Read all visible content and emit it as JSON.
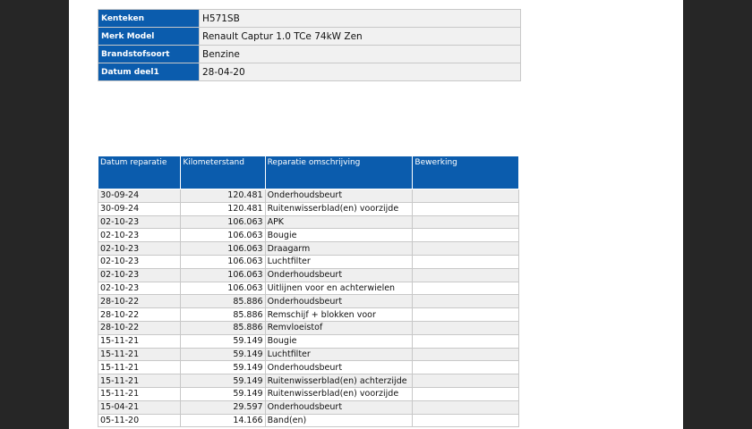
{
  "vehicle": {
    "rows": [
      {
        "label": "Kenteken",
        "value": "H571SB"
      },
      {
        "label": "Merk Model",
        "value": "Renault Captur 1.0 TCe 74kW Zen"
      },
      {
        "label": "Brandstofsoort",
        "value": "Benzine"
      },
      {
        "label": "Datum deel1",
        "value": "28-04-20"
      }
    ]
  },
  "repairs": {
    "headers": [
      "Datum reparatie",
      "Kilometerstand",
      "Reparatie omschrijving",
      "Bewerking"
    ],
    "rows": [
      [
        "30-09-24",
        "120.481",
        "Onderhoudsbeurt"
      ],
      [
        "30-09-24",
        "120.481",
        "Ruitenwisserblad(en) voorzijde"
      ],
      [
        "02-10-23",
        "106.063",
        "APK"
      ],
      [
        "02-10-23",
        "106.063",
        "Bougie"
      ],
      [
        "02-10-23",
        "106.063",
        "Draagarm"
      ],
      [
        "02-10-23",
        "106.063",
        "Luchtfilter"
      ],
      [
        "02-10-23",
        "106.063",
        "Onderhoudsbeurt"
      ],
      [
        "02-10-23",
        "106.063",
        "Uitlijnen voor en achterwielen"
      ],
      [
        "28-10-22",
        "85.886",
        "Onderhoudsbeurt"
      ],
      [
        "28-10-22",
        "85.886",
        "Remschijf + blokken voor"
      ],
      [
        "28-10-22",
        "85.886",
        "Remvloeistof"
      ],
      [
        "15-11-21",
        "59.149",
        "Bougie"
      ],
      [
        "15-11-21",
        "59.149",
        "Luchtfilter"
      ],
      [
        "15-11-21",
        "59.149",
        "Onderhoudsbeurt"
      ],
      [
        "15-11-21",
        "59.149",
        "Ruitenwisserblad(en) achterzijde"
      ],
      [
        "15-11-21",
        "59.149",
        "Ruitenwisserblad(en) voorzijde"
      ],
      [
        "15-04-21",
        "29.597",
        "Onderhoudsbeurt"
      ],
      [
        "05-11-20",
        "14.166",
        "Band(en)"
      ]
    ]
  }
}
